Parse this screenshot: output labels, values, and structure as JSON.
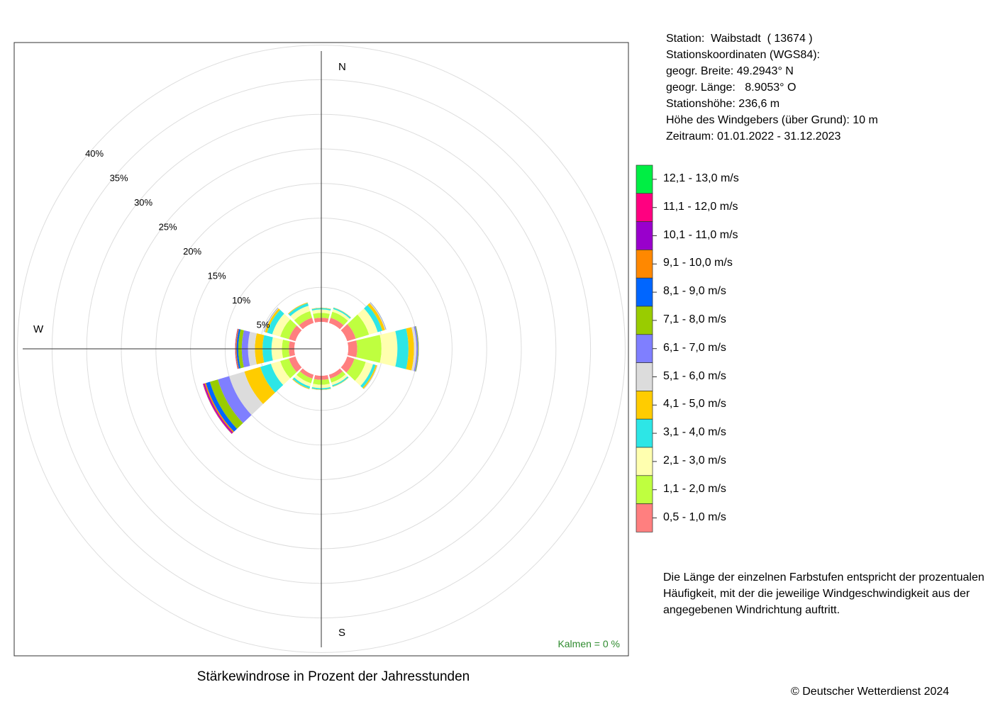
{
  "station_info": {
    "lines": [
      "Station:  Waibstadt  ( 13674 )",
      "Stationskoordinaten (WGS84):",
      "geogr. Breite: 49.2943° N",
      "geogr. Länge:   8.9053° O",
      "Stationshöhe: 236,6 m",
      "Höhe des Windgebers (über Grund): 10 m",
      "Zeitraum: 01.01.2022 - 31.12.2023"
    ]
  },
  "footnote": {
    "lines": [
      "Die Länge der einzelnen Farbstufen entspricht der prozentualen",
      "Häufigkeit, mit der die jeweilige Windgeschwindigkeit aus der",
      "angegebenen Windrichtung auftritt."
    ]
  },
  "copyright": "© Deutscher Wetterdienst  2024",
  "chart_data": {
    "type": "wind-rose",
    "title": "Stärkewindrose in Prozent der Jahresstunden",
    "radial_axis": {
      "max": 40,
      "ticks": [
        5,
        10,
        15,
        20,
        25,
        30,
        35,
        40
      ],
      "tick_labels": [
        "5%",
        "10%",
        "15%",
        "20%",
        "25%",
        "30%",
        "35%",
        "40%"
      ],
      "grid": true
    },
    "direction_labels": [
      "N",
      "W",
      "S"
    ],
    "calms_label": "Kalmen  =  0 %",
    "speed_classes": [
      {
        "label": "0,5 - 1,0 m/s",
        "color": "#ff7f7f"
      },
      {
        "label": "1,1 - 2,0 m/s",
        "color": "#bfff3f"
      },
      {
        "label": "2,1 - 3,0 m/s",
        "color": "#ffffaf"
      },
      {
        "label": "3,1 - 4,0 m/s",
        "color": "#2de6e6"
      },
      {
        "label": "4,1 - 5,0 m/s",
        "color": "#ffcc00"
      },
      {
        "label": "5,1 - 6,0 m/s",
        "color": "#dcdcdc"
      },
      {
        "label": "6,1 - 7,0 m/s",
        "color": "#7f7fff"
      },
      {
        "label": "7,1 - 8,0 m/s",
        "color": "#99cc00"
      },
      {
        "label": "8,1 - 9,0 m/s",
        "color": "#0066ff"
      },
      {
        "label": "9,1 - 10,0 m/s",
        "color": "#ff8800"
      },
      {
        "label": "10,1 - 11,0 m/s",
        "color": "#9900cc"
      },
      {
        "label": "11,1 - 12,0 m/s",
        "color": "#ff0080"
      },
      {
        "label": "12,1 - 13,0 m/s",
        "color": "#00ee44"
      }
    ],
    "sectors": [
      {
        "direction_deg": 90,
        "values": [
          1.3,
          3.5,
          2.3,
          1.6,
          0.8,
          0.35,
          0.2,
          0.08,
          0.04,
          0.02,
          0,
          0,
          0
        ]
      },
      {
        "direction_deg": 60,
        "values": [
          1.3,
          2.0,
          1.3,
          0.7,
          0.4,
          0.12,
          0.05,
          0.02,
          0.01,
          0,
          0,
          0,
          0
        ]
      },
      {
        "direction_deg": 120,
        "values": [
          1.1,
          1.7,
          1.1,
          0.4,
          0.2,
          0.05,
          0.02,
          0.01,
          0,
          0,
          0,
          0,
          0
        ]
      },
      {
        "direction_deg": 30,
        "values": [
          0.8,
          0.9,
          0.4,
          0.2,
          0.05,
          0.02,
          0,
          0,
          0,
          0,
          0,
          0,
          0
        ]
      },
      {
        "direction_deg": 0,
        "values": [
          0.6,
          0.7,
          0.5,
          0.2,
          0.05,
          0.02,
          0,
          0,
          0,
          0,
          0,
          0,
          0
        ]
      },
      {
        "direction_deg": 150,
        "values": [
          0.6,
          0.6,
          0.4,
          0.2,
          0.05,
          0.02,
          0,
          0,
          0,
          0,
          0,
          0,
          0
        ]
      },
      {
        "direction_deg": 180,
        "values": [
          0.6,
          0.7,
          0.5,
          0.2,
          0.05,
          0.02,
          0,
          0,
          0,
          0,
          0,
          0,
          0
        ]
      },
      {
        "direction_deg": 210,
        "values": [
          0.6,
          0.7,
          0.5,
          0.3,
          0.1,
          0.03,
          0,
          0,
          0,
          0,
          0,
          0,
          0
        ]
      },
      {
        "direction_deg": 240,
        "values": [
          1.0,
          1.3,
          1.4,
          1.6,
          2.4,
          2.3,
          1.7,
          1.2,
          0.6,
          0.2,
          0.15,
          0.1,
          0.02
        ]
      },
      {
        "direction_deg": 270,
        "values": [
          0.8,
          1.0,
          1.5,
          1.3,
          1.1,
          1.0,
          0.9,
          0.5,
          0.25,
          0.12,
          0.05,
          0.03,
          0.01
        ]
      },
      {
        "direction_deg": 300,
        "values": [
          1.0,
          1.3,
          1.2,
          0.8,
          0.3,
          0.1,
          0.05,
          0.02,
          0.01,
          0,
          0,
          0,
          0
        ]
      },
      {
        "direction_deg": 330,
        "values": [
          0.8,
          1.0,
          0.8,
          0.4,
          0.1,
          0.03,
          0,
          0,
          0,
          0,
          0,
          0,
          0
        ]
      }
    ]
  }
}
